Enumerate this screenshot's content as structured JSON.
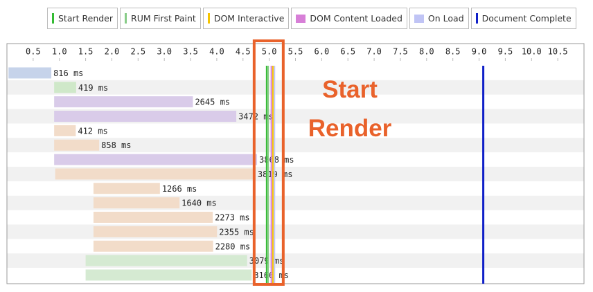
{
  "chart_data": {
    "type": "waterfall",
    "xlim": [
      0,
      11
    ],
    "xticks": [
      0.5,
      {
        "value": 1,
        "label": "1.0"
      },
      1.5,
      {
        "value": 2,
        "label": "2.0"
      },
      2.5,
      {
        "value": 3,
        "label": "3.0"
      },
      3.5,
      {
        "value": 4,
        "label": "4.0"
      },
      4.5,
      {
        "value": 5,
        "label": "5.0"
      },
      5.5,
      {
        "value": 6,
        "label": "6.0"
      },
      6.5,
      {
        "value": 7,
        "label": "7.0"
      },
      7.5,
      {
        "value": 8,
        "label": "8.0"
      },
      8.5,
      {
        "value": 9,
        "label": "9.0"
      },
      9.5,
      {
        "value": 10,
        "label": "10.0"
      },
      10.5
    ],
    "starts": [
      0.03,
      0.9,
      0.9,
      0.9,
      0.9,
      0.9,
      0.9,
      0.92,
      1.65,
      1.65,
      1.65,
      1.65,
      1.65,
      1.5,
      1.5
    ],
    "values": [
      0.816,
      0.419,
      2.645,
      3.472,
      0.412,
      0.858,
      3.868,
      3.819,
      1.266,
      1.64,
      2.273,
      2.355,
      2.28,
      3.079,
      3.166
    ],
    "value_labels": [
      "816 ms",
      "419 ms",
      "2645 ms",
      "3472 ms",
      "412 ms",
      "858 ms",
      "3868 ms",
      "3819 ms",
      "1266 ms",
      "1640 ms",
      "2273 ms",
      "2355 ms",
      "2280 ms",
      "3079 ms",
      "3166 ms"
    ],
    "colors": [
      "#c6d3ea",
      "#cfe8c9",
      "#d9cbe9",
      "#d9cbe9",
      "#f2dcc9",
      "#f2dcc9",
      "#d9cbe9",
      "#f2dcc9",
      "#f2dcc9",
      "#f2dcc9",
      "#f2dcc9",
      "#f2dcc9",
      "#f2dcc9",
      "#d5ead2",
      "#d5ead2"
    ],
    "events": [
      {
        "name": "Start Render",
        "color": "#33bb33",
        "value": 4.95
      },
      {
        "name": "RUM First Paint",
        "color": "#88cc88",
        "value": 4.98
      },
      {
        "name": "DOM Interactive",
        "color": "#f5c400",
        "value": 5.07
      },
      {
        "name": "DOM Content Loaded",
        "color": "#d77fd7",
        "value": 5.04
      },
      {
        "name": "On Load",
        "color": "#c0c4f5",
        "value": 5.1
      },
      {
        "name": "Document Complete",
        "color": "#1020c8",
        "value": 9.08
      }
    ],
    "annotation": "Start Render"
  }
}
